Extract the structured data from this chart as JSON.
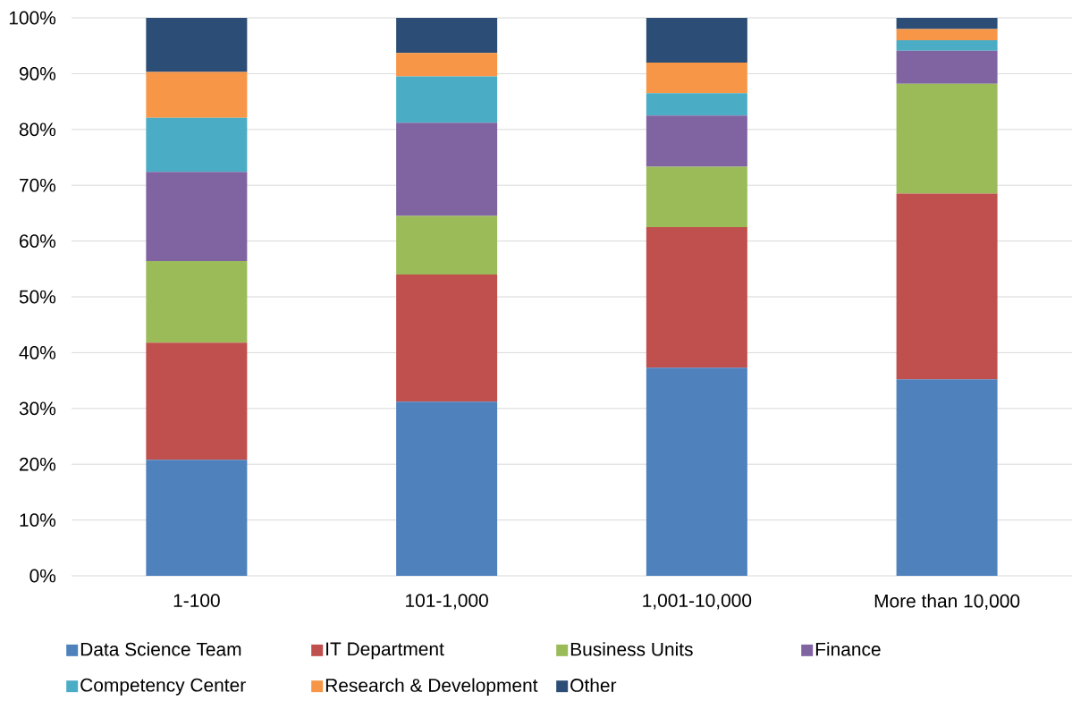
{
  "chart_data": {
    "type": "bar",
    "stacked": true,
    "categories": [
      "1-100",
      "101-1,000",
      "1,001-10,000",
      "More than 10,000"
    ],
    "series": [
      {
        "name": "Data Science Team",
        "color": "#4f81bd",
        "values": [
          20.8,
          31.2,
          37.3,
          35.2
        ]
      },
      {
        "name": "IT Department",
        "color": "#c0504d",
        "values": [
          21.0,
          22.8,
          25.2,
          33.3
        ]
      },
      {
        "name": "Business Units",
        "color": "#9bbb59",
        "values": [
          14.6,
          10.5,
          10.8,
          19.7
        ]
      },
      {
        "name": "Finance",
        "color": "#8064a2",
        "values": [
          16.0,
          16.7,
          9.2,
          5.9
        ]
      },
      {
        "name": "Competency Center",
        "color": "#4bacc6",
        "values": [
          9.7,
          8.3,
          4.0,
          1.9
        ]
      },
      {
        "name": "Research & Development",
        "color": "#f79646",
        "values": [
          8.2,
          4.2,
          5.5,
          2.0
        ]
      },
      {
        "name": "Other",
        "color": "#2c4d75",
        "values": [
          9.7,
          6.3,
          8.0,
          2.0
        ]
      }
    ],
    "ylim": [
      0,
      100
    ],
    "yticks": [
      {
        "value": 0,
        "label": "0%"
      },
      {
        "value": 10,
        "label": "10%"
      },
      {
        "value": 20,
        "label": "20%"
      },
      {
        "value": 30,
        "label": "30%"
      },
      {
        "value": 40,
        "label": "40%"
      },
      {
        "value": 50,
        "label": "50%"
      },
      {
        "value": 60,
        "label": "60%"
      },
      {
        "value": 70,
        "label": "70%"
      },
      {
        "value": 80,
        "label": "80%"
      },
      {
        "value": 90,
        "label": "90%"
      },
      {
        "value": 100,
        "label": "100%"
      }
    ],
    "grid": "y",
    "legend": "bottom"
  }
}
